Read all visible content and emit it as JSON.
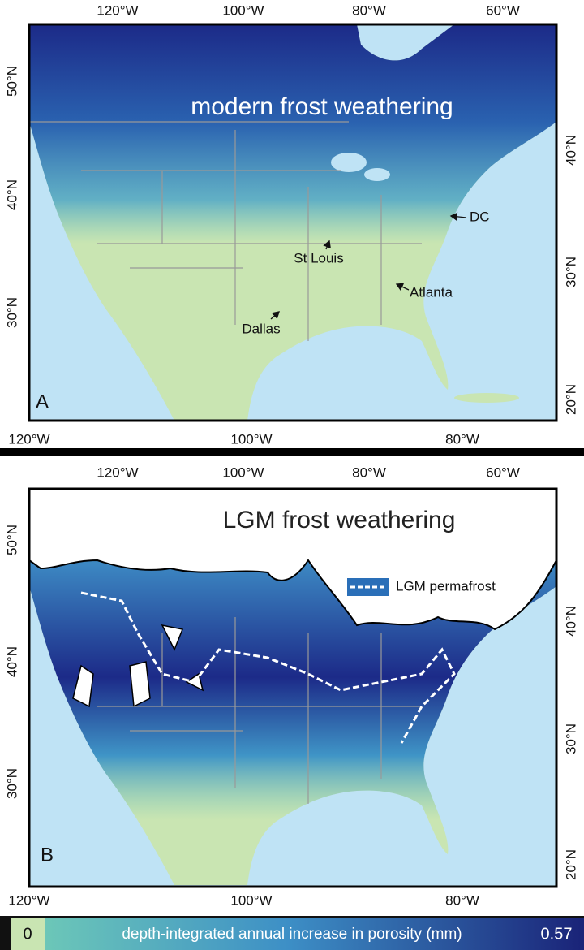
{
  "panels": [
    {
      "label": "A",
      "title": "modern frost weathering",
      "top_ticks": [
        "120°W",
        "100°W",
        "80°W",
        "60°W"
      ],
      "bottom_ticks": [
        "120°W",
        "100°W",
        "80°W"
      ],
      "left_ticks": [
        "50°N",
        "40°N",
        "30°N"
      ],
      "right_ticks": [
        "40°N",
        "30°N",
        "20°N"
      ],
      "cities": [
        "DC",
        "St Louis",
        "Atlanta",
        "Dallas"
      ]
    },
    {
      "label": "B",
      "title": "LGM frost weathering",
      "top_ticks": [
        "120°W",
        "100°W",
        "80°W",
        "60°W"
      ],
      "bottom_ticks": [
        "120°W",
        "100°W",
        "80°W"
      ],
      "left_ticks": [
        "50°N",
        "40°N",
        "30°N"
      ],
      "right_ticks": [
        "40°N",
        "30°N",
        "20°N"
      ],
      "legend": "LGM permafrost"
    }
  ],
  "colorbar": {
    "min": 0,
    "max": 0.57,
    "label": "depth-integrated annual increase in porosity (mm)"
  }
}
